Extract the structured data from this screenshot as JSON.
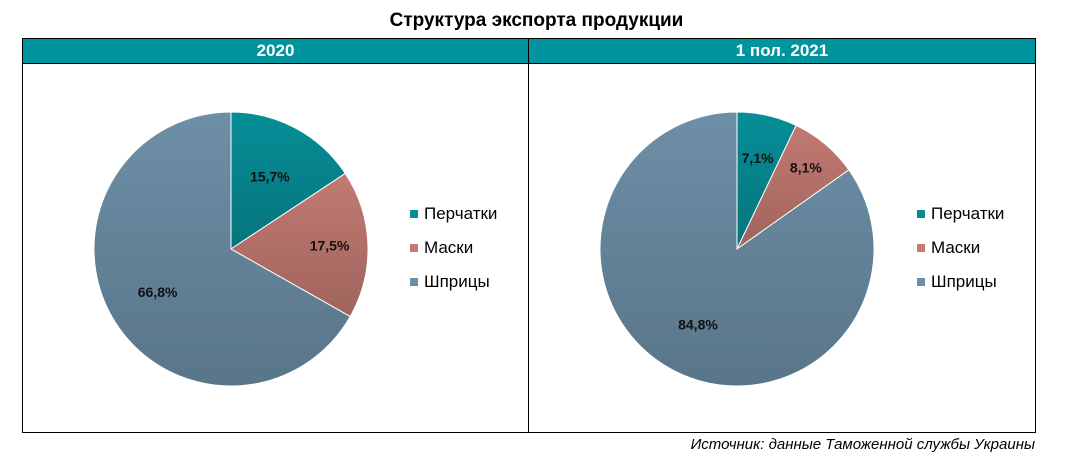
{
  "title": "Структура экспорта продукции",
  "source": "Источник: данные Таможенной службы Украины",
  "colors": {
    "header": "#00949e",
    "Перчатки": "#068e97",
    "Маски": "#c27a72",
    "Шприцы": "#6d8fa7"
  },
  "chart_data": [
    {
      "type": "pie",
      "title": "2020",
      "labels": [
        "Перчатки",
        "Маски",
        "Шприцы"
      ],
      "values": [
        15.7,
        17.5,
        66.8
      ],
      "value_labels": [
        "15,7%",
        "17,5%",
        "66,8%"
      ],
      "legend": "right"
    },
    {
      "type": "pie",
      "title": "1 пол. 2021",
      "labels": [
        "Перчатки",
        "Маски",
        "Шприцы"
      ],
      "values": [
        7.1,
        8.1,
        84.8
      ],
      "value_labels": [
        "7,1%",
        "8,1%",
        "84,8%"
      ],
      "legend": "right"
    }
  ]
}
